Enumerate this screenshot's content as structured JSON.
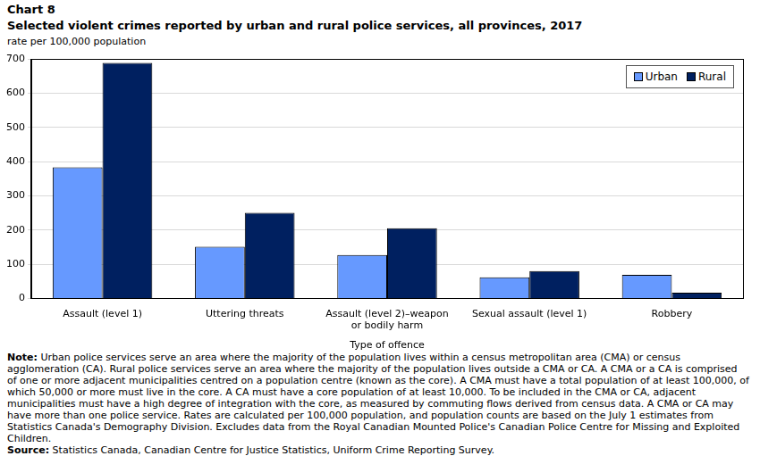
{
  "chart_data": {
    "type": "bar",
    "title": "Chart 8",
    "subtitle": "Selected violent crimes reported by urban and rural police services, all provinces, 2017",
    "y_label": "rate per 100,000 population",
    "x_label": "Type of offence",
    "categories": [
      "Assault (level 1)",
      "Uttering threats",
      "Assault (level 2)–weapon or bodily harm",
      "Sexual assault (level 1)",
      "Robbery"
    ],
    "series": [
      {
        "name": "Urban",
        "color": "#6699ff",
        "values": [
          383,
          151,
          127,
          62,
          69
        ]
      },
      {
        "name": "Rural",
        "color": "#002060",
        "values": [
          688,
          250,
          205,
          80,
          17
        ]
      }
    ],
    "ylim": [
      0,
      700
    ],
    "yticks": [
      0,
      100,
      200,
      300,
      400,
      500,
      600,
      700
    ],
    "grid": true,
    "legend": "upper right",
    "note": "Note: Urban police services serve an area where the majority of the population lives within a census metropolitan area (CMA) or census agglomeration (CA). Rural police services serve an area where the majority of the population lives outside a CMA or CA. A CMA or a CA is comprised of one or more adjacent municipalities centred on a population centre (known as the core). A CMA must have a total population of at least 100,000, of which 50,000 or more must live in the core. A CA must have a core population of at least 10,000. To be included in the CMA or CA, adjacent municipalities must have a high degree of integration with the core, as measured by commuting flows derived from census data. A CMA or CA may have more than one police service. Rates are calculated per 100,000 population, and population counts are based on the July 1 estimates from Statistics Canada's Demography Division. Excludes data from the Royal Canadian Mounted Police's Canadian Police Centre for Missing and Exploited Children.",
    "source": "Source: Statistics Canada, Canadian Centre for Justice Statistics, Uniform Crime Reporting Survey."
  }
}
